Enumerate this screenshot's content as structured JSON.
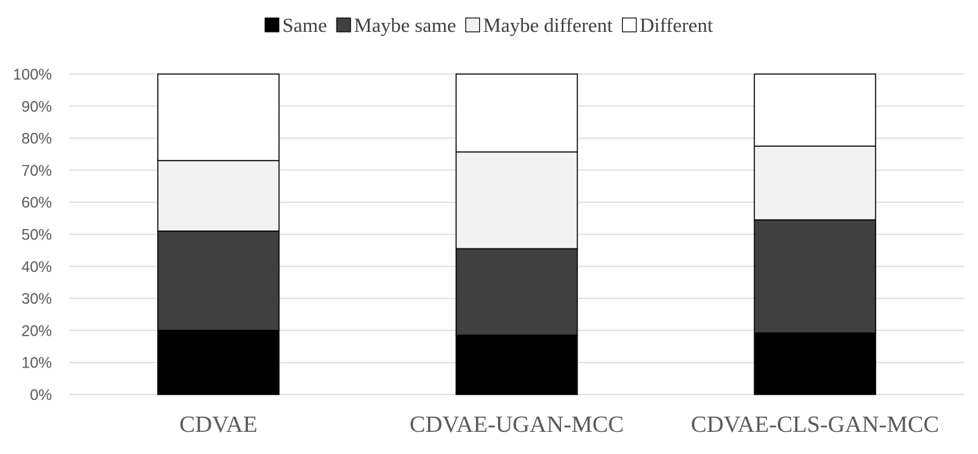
{
  "chart_data": {
    "type": "bar",
    "stacked": true,
    "percent_stacked": true,
    "title": "",
    "xlabel": "",
    "ylabel": "",
    "ylim": [
      0,
      100
    ],
    "y_ticks": [
      "0%",
      "10%",
      "20%",
      "30%",
      "40%",
      "50%",
      "60%",
      "70%",
      "80%",
      "90%",
      "100%"
    ],
    "grid": true,
    "legend_position": "top",
    "categories": [
      "CDVAE",
      "CDVAE-UGAN-MCC",
      "CDVAE-CLS-GAN-MCC"
    ],
    "series": [
      {
        "name": "Same",
        "color": "#000000",
        "values": [
          20,
          18.5,
          19.2
        ]
      },
      {
        "name": "Maybe same",
        "color": "#404040",
        "values": [
          31,
          27,
          35.3
        ]
      },
      {
        "name": "Maybe different",
        "color": "#f2f2f2",
        "values": [
          22,
          30.2,
          23
        ]
      },
      {
        "name": "Different",
        "color": "#ffffff",
        "values": [
          27,
          24.3,
          22.5
        ]
      }
    ]
  }
}
